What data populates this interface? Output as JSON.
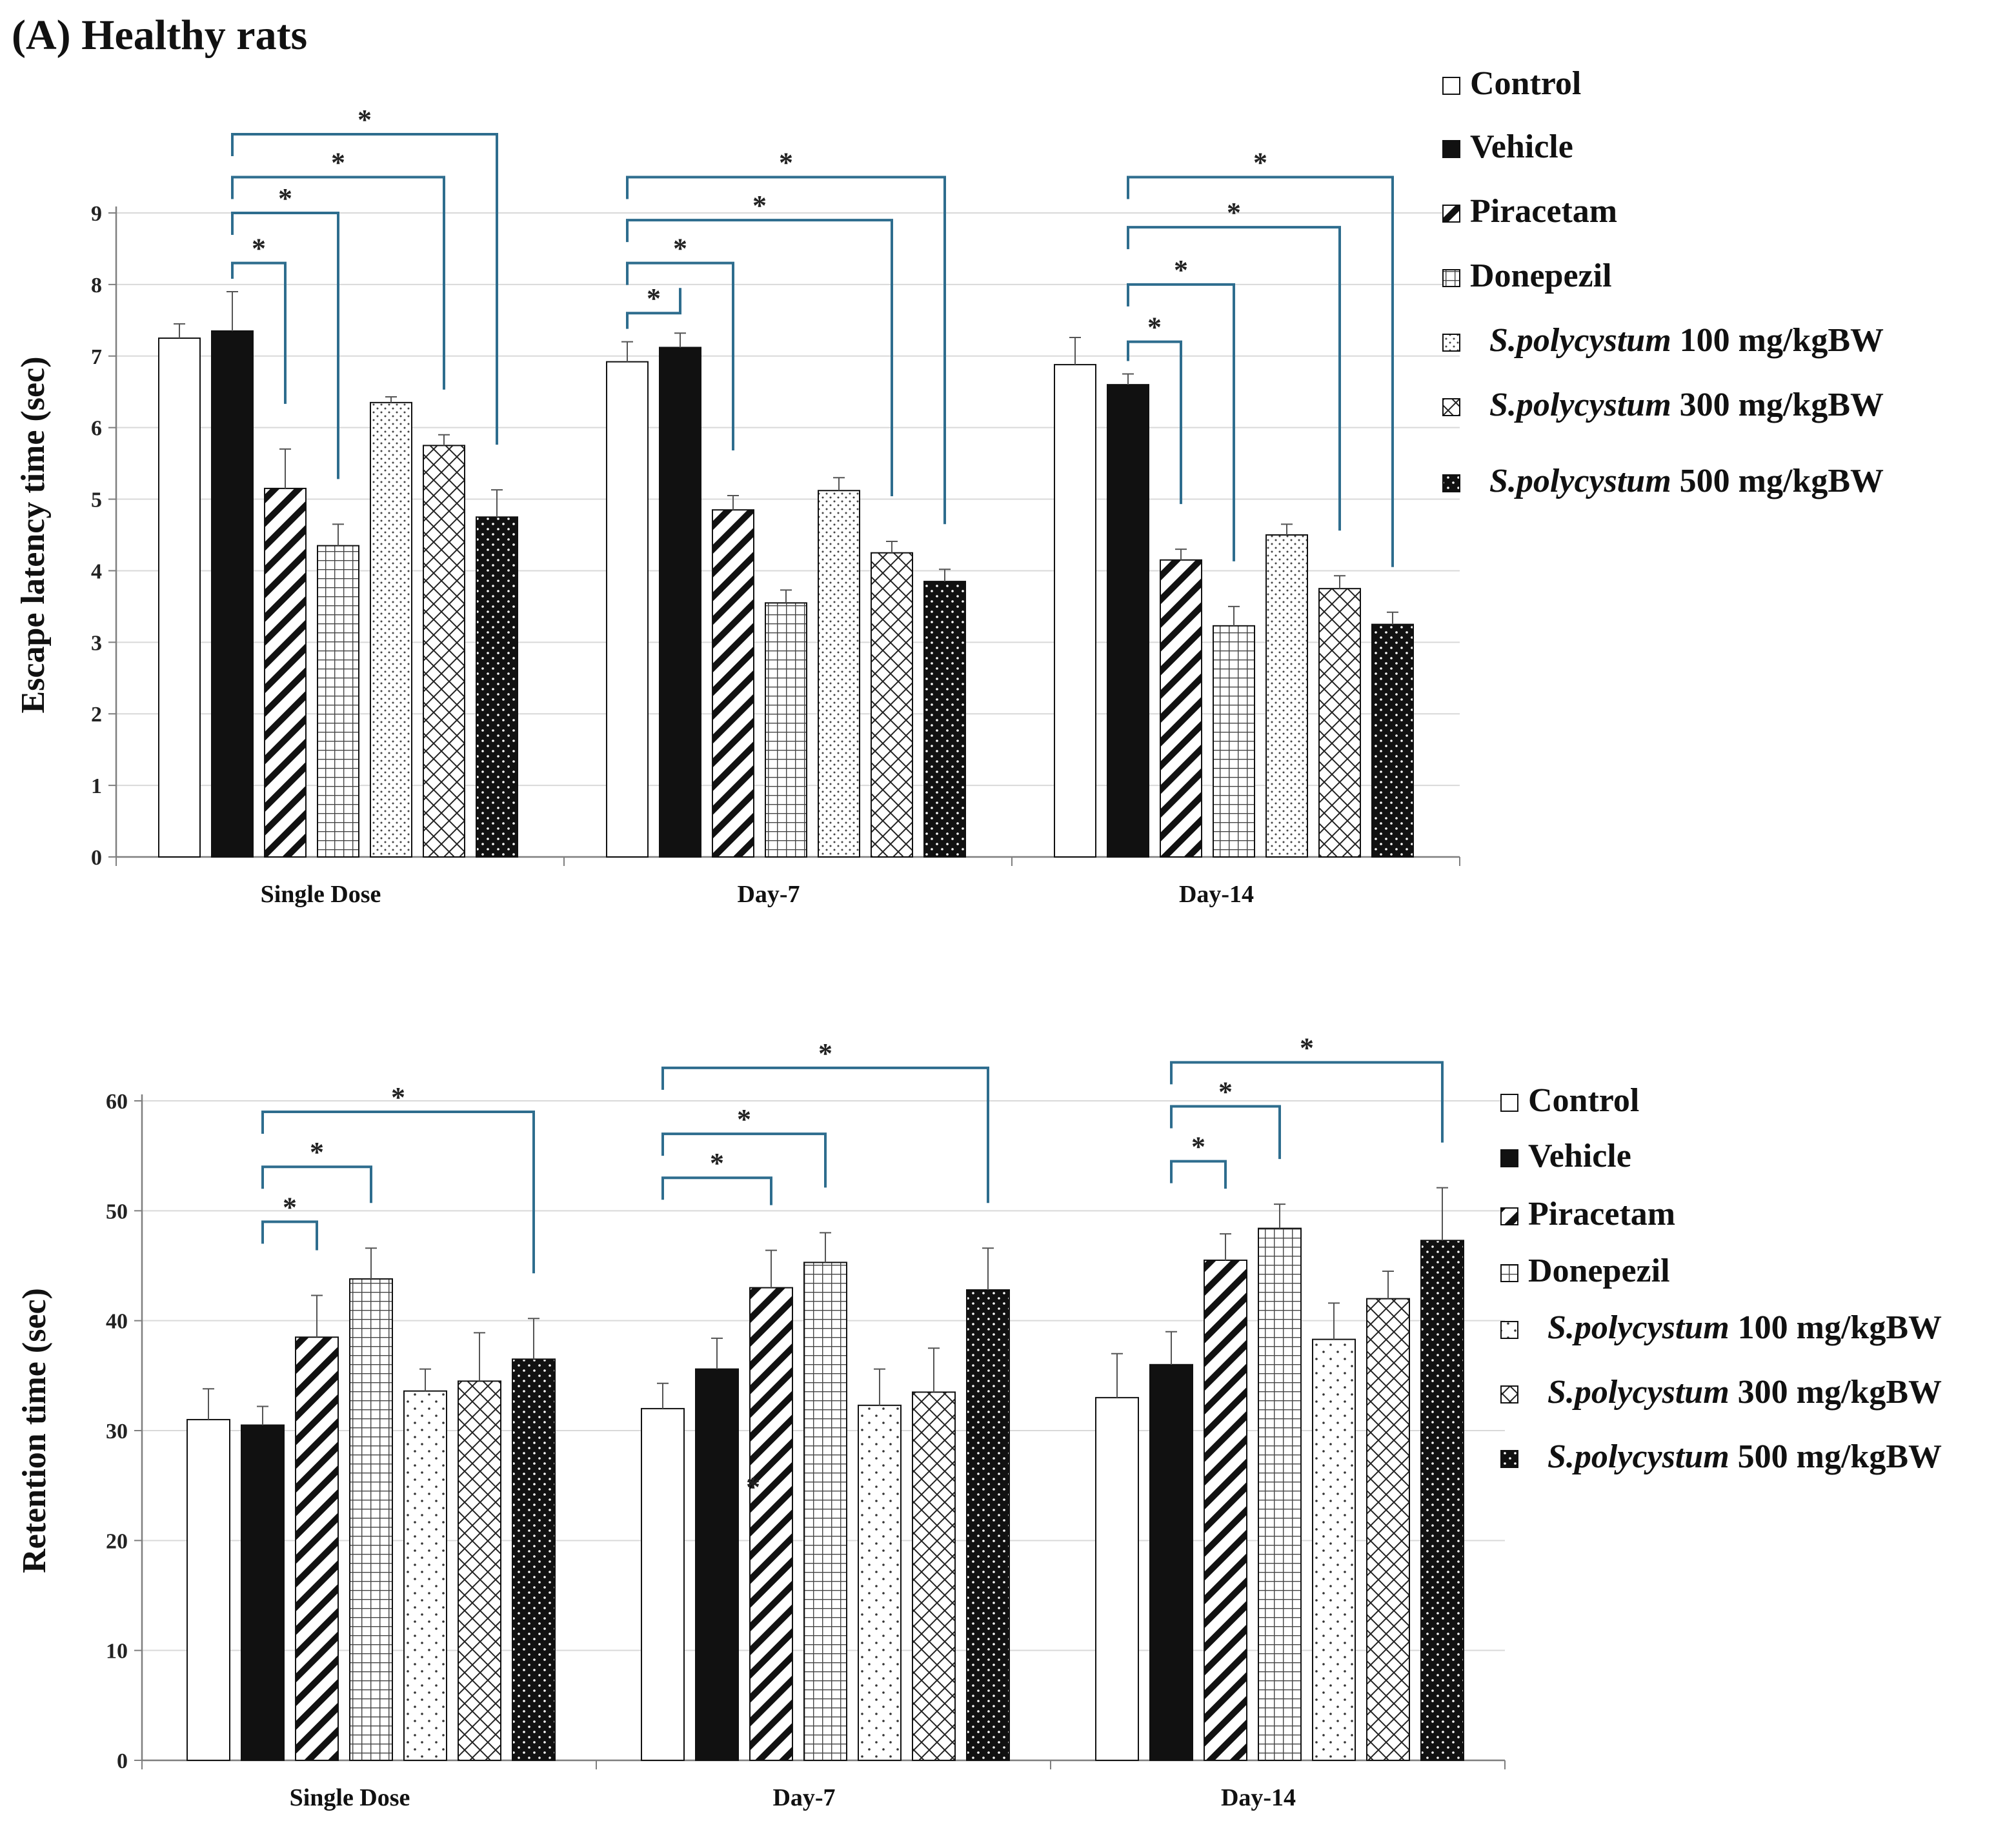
{
  "figure_title": "(A) Healthy rats",
  "colors": {
    "bracket": "#2e6d8e",
    "grid": "#d9d9d9",
    "axis": "#7f7f7f",
    "bar_outline": "#111111"
  },
  "legend": [
    {
      "label": "Control",
      "italic_prefix": "",
      "pattern": "control-fill"
    },
    {
      "label": "Vehicle",
      "italic_prefix": "",
      "pattern": "vehicle-fill"
    },
    {
      "label": "Piracetam",
      "italic_prefix": "",
      "pattern": "piracetam-fill"
    },
    {
      "label": "Donepezil",
      "italic_prefix": "",
      "pattern": "donepezil-fill"
    },
    {
      "label": " 100 mg/kgBW",
      "italic_prefix": "S.polycystum",
      "pattern": "sp100-fill"
    },
    {
      "label": " 300 mg/kgBW",
      "italic_prefix": "S.polycystum",
      "pattern": "sp300-fill"
    },
    {
      "label": " 500 mg/kgBW",
      "italic_prefix": "S.polycystum",
      "pattern": "sp500-fill"
    }
  ],
  "chart_data": [
    {
      "type": "bar",
      "title": "",
      "xlabel": "",
      "ylabel": "Escape latency time (sec)",
      "ylim": [
        0,
        9
      ],
      "yticks": [
        0,
        1,
        2,
        3,
        4,
        5,
        6,
        7,
        8,
        9
      ],
      "tick_labels": [
        "0",
        "1",
        "2",
        "3",
        "4",
        "5",
        "6",
        "7",
        "8",
        "9"
      ],
      "grid": true,
      "legend_position": "right",
      "categories": [
        "Single Dose",
        "Day-7",
        "Day-14"
      ],
      "series": [
        {
          "name": "Control",
          "values": [
            7.25,
            6.92,
            6.88
          ],
          "errors": [
            0.2,
            0.28,
            0.38
          ]
        },
        {
          "name": "Vehicle",
          "values": [
            7.35,
            7.12,
            6.6
          ],
          "errors": [
            0.55,
            0.2,
            0.15
          ]
        },
        {
          "name": "Piracetam",
          "values": [
            5.15,
            4.85,
            4.15
          ],
          "errors": [
            0.55,
            0.2,
            0.15
          ]
        },
        {
          "name": "Donepezil",
          "values": [
            4.35,
            3.55,
            3.23
          ],
          "errors": [
            0.3,
            0.18,
            0.27
          ]
        },
        {
          "name": "S.polycystum 100 mg/kgBW",
          "values": [
            6.35,
            5.12,
            4.5
          ],
          "errors": [
            0.08,
            0.18,
            0.15
          ]
        },
        {
          "name": "S.polycystum 300 mg/kgBW",
          "values": [
            5.75,
            4.25,
            3.75
          ],
          "errors": [
            0.15,
            0.16,
            0.18
          ]
        },
        {
          "name": "S.polycystum 500 mg/kgBW",
          "values": [
            4.75,
            3.85,
            3.25
          ],
          "errors": [
            0.38,
            0.17,
            0.17
          ]
        }
      ],
      "significance": [
        {
          "category": 0,
          "from": 1,
          "to": 2,
          "label": "*",
          "level": 8.3
        },
        {
          "category": 0,
          "from": 1,
          "to": 3,
          "label": "*",
          "level": 9.0
        },
        {
          "category": 0,
          "from": 1,
          "to": 5,
          "label": "*",
          "level": 9.5
        },
        {
          "category": 0,
          "from": 1,
          "to": 6,
          "label": "*",
          "level": 10.1
        },
        {
          "category": 1,
          "from": 0,
          "to": 1,
          "label": "*",
          "level": 7.6
        },
        {
          "category": 1,
          "from": 0,
          "to": 2,
          "label": "*",
          "level": 8.3
        },
        {
          "category": 1,
          "from": 0,
          "to": 5,
          "label": "*",
          "level": 8.9
        },
        {
          "category": 1,
          "from": 0,
          "to": 6,
          "label": "*",
          "level": 9.5
        },
        {
          "category": 2,
          "from": 1,
          "to": 2,
          "label": "*",
          "level": 7.2
        },
        {
          "category": 2,
          "from": 1,
          "to": 3,
          "label": "*",
          "level": 8.0
        },
        {
          "category": 2,
          "from": 1,
          "to": 5,
          "label": "*",
          "level": 8.8
        },
        {
          "category": 2,
          "from": 1,
          "to": 6,
          "label": "*",
          "level": 9.5
        }
      ]
    },
    {
      "type": "bar",
      "title": "",
      "xlabel": "",
      "ylabel": "Retention time (sec)",
      "ylim": [
        0,
        60
      ],
      "yticks": [
        0,
        10,
        20,
        30,
        40,
        50,
        60
      ],
      "tick_labels": [
        "0",
        "10",
        "20",
        "30",
        "40",
        "50",
        "60"
      ],
      "grid": true,
      "legend_position": "right",
      "categories": [
        "Single Dose",
        "Day-7",
        "Day-14"
      ],
      "series": [
        {
          "name": "Control",
          "values": [
            31.0,
            32.0,
            33.0
          ],
          "errors": [
            2.8,
            2.3,
            4.0
          ]
        },
        {
          "name": "Vehicle",
          "values": [
            30.5,
            35.6,
            36.0
          ],
          "errors": [
            1.7,
            2.8,
            3.0
          ]
        },
        {
          "name": "Piracetam",
          "values": [
            38.5,
            43.0,
            45.5
          ],
          "errors": [
            3.8,
            3.4,
            2.4
          ]
        },
        {
          "name": "Donepezil",
          "values": [
            43.8,
            45.3,
            48.4
          ],
          "errors": [
            2.8,
            2.7,
            2.2
          ]
        },
        {
          "name": "S.polycystum 100 mg/kgBW",
          "values": [
            33.6,
            32.3,
            38.3
          ],
          "errors": [
            2.0,
            3.3,
            3.3
          ]
        },
        {
          "name": "S.polycystum 300 mg/kgBW",
          "values": [
            34.5,
            33.5,
            42.0
          ],
          "errors": [
            4.4,
            4.0,
            2.5
          ]
        },
        {
          "name": "S.polycystum 500 mg/kgBW",
          "values": [
            36.5,
            42.8,
            47.3
          ],
          "errors": [
            3.7,
            3.8,
            4.8
          ]
        }
      ],
      "significance": [
        {
          "category": 0,
          "from": 1,
          "to": 2,
          "label": "*",
          "level": 49
        },
        {
          "category": 0,
          "from": 1,
          "to": 3,
          "label": "*",
          "level": 54
        },
        {
          "category": 0,
          "from": 1,
          "to": 6,
          "label": "*",
          "level": 59
        },
        {
          "category": 1,
          "from": 0,
          "to": 2,
          "label": "*",
          "level": 53
        },
        {
          "category": 1,
          "from": 0,
          "to": 3,
          "label": "*",
          "level": 57
        },
        {
          "category": 1,
          "from": 0,
          "to": 6,
          "label": "*",
          "level": 63
        },
        {
          "category": 2,
          "from": 1,
          "to": 2,
          "label": "*",
          "level": 54.5
        },
        {
          "category": 2,
          "from": 1,
          "to": 3,
          "label": "*",
          "level": 59.5
        },
        {
          "category": 2,
          "from": 1,
          "to": 6,
          "label": "*",
          "level": 63.5
        }
      ],
      "annotations": [
        {
          "category": 1,
          "series": 2,
          "value": 24,
          "label": "*"
        }
      ]
    }
  ]
}
